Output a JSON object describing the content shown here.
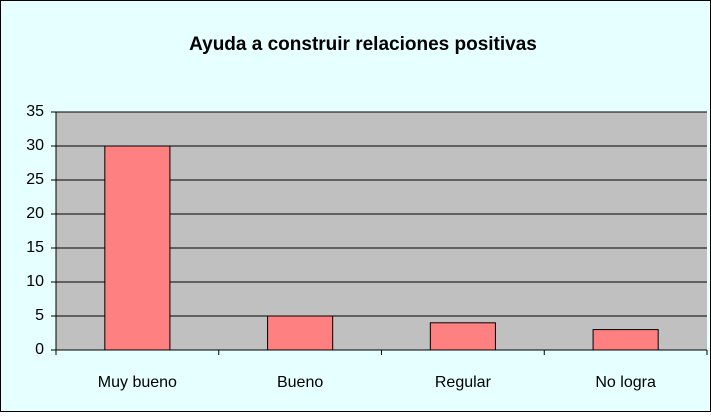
{
  "chart_data": {
    "type": "bar",
    "title": "Ayuda a construir relaciones positivas",
    "categories": [
      "Muy bueno",
      "Bueno",
      "Regular",
      "No logra"
    ],
    "values": [
      30,
      5,
      4,
      3
    ],
    "color": "#ff8080",
    "ylim": [
      0,
      35
    ],
    "yticks": [
      0,
      5,
      10,
      15,
      20,
      25,
      30,
      35
    ],
    "grid": true
  }
}
